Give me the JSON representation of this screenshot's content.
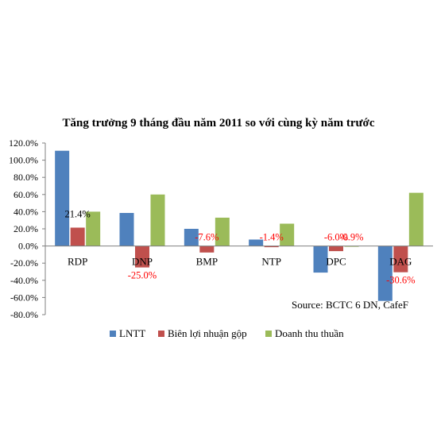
{
  "chart_data": {
    "type": "bar",
    "title": "Tăng trưởng 9 tháng đầu năm 2011 so với cùng kỳ năm trước",
    "categories": [
      "RDP",
      "DNP",
      "BMP",
      "NTP",
      "DPC",
      "DAG"
    ],
    "series": [
      {
        "name": "LNTT",
        "color": "#4F81BD",
        "values": [
          111.0,
          38.5,
          20.0,
          7.5,
          -31.0,
          -64.0
        ]
      },
      {
        "name": "Biên lợi nhuận gộp",
        "color": "#C0504D",
        "values": [
          21.4,
          -25.0,
          -7.6,
          -1.4,
          -6.0,
          -30.6
        ]
      },
      {
        "name": "Doanh thu thuần",
        "color": "#9BBB59",
        "values": [
          40.0,
          60.0,
          33.0,
          26.0,
          -0.9,
          62.0
        ]
      }
    ],
    "ylim": [
      -80,
      120
    ],
    "yticks": [
      "120.0%",
      "100.0%",
      "80.0%",
      "60.0%",
      "40.0%",
      "20.0%",
      "0.0%",
      "-20.0%",
      "-40.0%",
      "-60.0%",
      "-80.0%"
    ],
    "data_labels": [
      {
        "series": 1,
        "category": 0,
        "text": "21.4%",
        "color": "#000000"
      },
      {
        "series": 1,
        "category": 1,
        "text": "-25.0%",
        "color": "#FF0000"
      },
      {
        "series": 1,
        "category": 2,
        "text": "-7.6%",
        "color": "#FF0000"
      },
      {
        "series": 1,
        "category": 3,
        "text": "-1.4%",
        "color": "#FF0000"
      },
      {
        "series": 1,
        "category": 4,
        "text": "-6.0%",
        "color": "#FF0000"
      },
      {
        "series": 2,
        "category": 4,
        "text": "-0.9%",
        "color": "#FF0000"
      },
      {
        "series": 1,
        "category": 5,
        "text": "-30.6%",
        "color": "#FF0000"
      }
    ],
    "annotation": "Source: BCTC 6 DN, CafeF",
    "grid": false,
    "legend_position": "bottom"
  }
}
